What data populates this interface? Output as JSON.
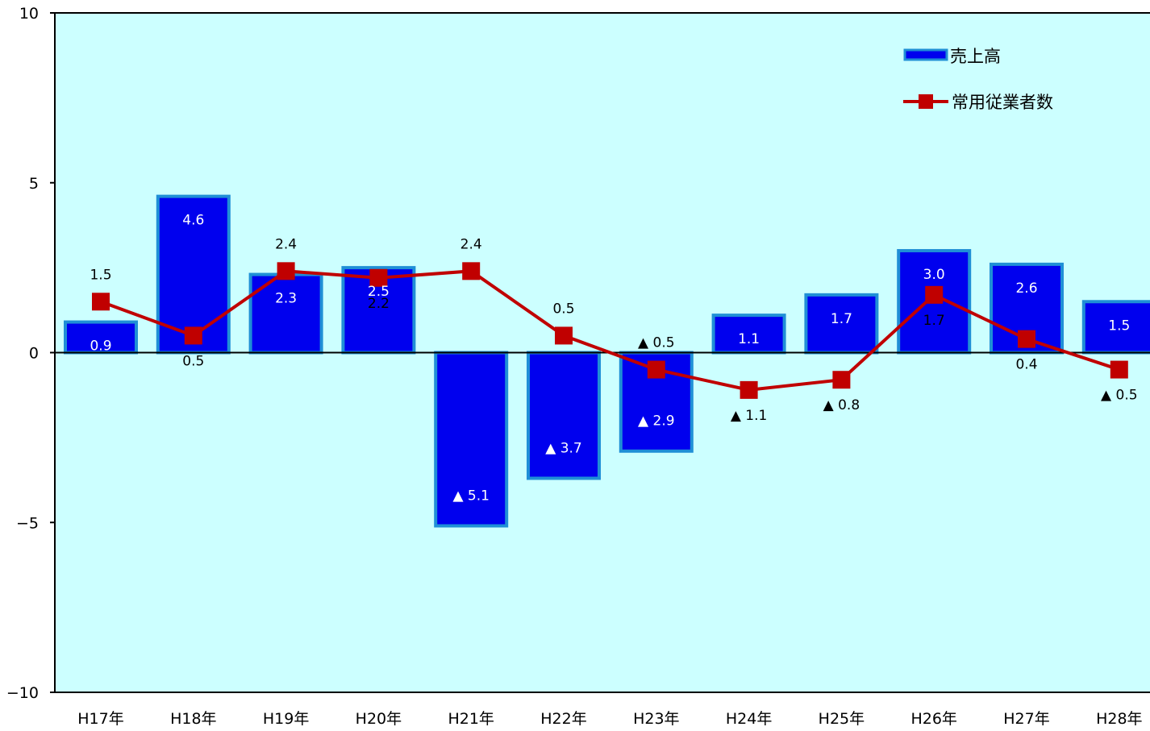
{
  "chart_data": {
    "type": "bar",
    "categories": [
      "H17年",
      "H18年",
      "H19年",
      "H20年",
      "H21年",
      "H22年",
      "H23年",
      "H24年",
      "H25年",
      "H26年",
      "H27年",
      "H28年"
    ],
    "series": [
      {
        "name": "売上高",
        "kind": "bar",
        "values": [
          0.9,
          4.6,
          2.3,
          2.5,
          -5.1,
          -3.7,
          -2.9,
          1.1,
          1.7,
          3.0,
          2.6,
          1.5
        ],
        "labels": [
          "0.9",
          "4.6",
          "2.3",
          "2.5",
          "▲ 5.1",
          "▲ 3.7",
          "▲ 2.9",
          "1.1",
          "1.7",
          "3.0",
          "2.6",
          "1.5"
        ],
        "color": "#0000ee",
        "border_color": "#1f8fd6"
      },
      {
        "name": "常用従業者数",
        "kind": "line",
        "values": [
          1.5,
          0.5,
          2.4,
          2.2,
          2.4,
          0.5,
          -0.5,
          -1.1,
          -0.8,
          1.7,
          0.4,
          -0.5
        ],
        "labels": [
          "1.5",
          "0.5",
          "2.4",
          "2.2",
          "2.4",
          "0.5",
          "▲ 0.5",
          "▲ 1.1",
          "▲ 0.8",
          "1.7",
          "0.4",
          "▲ 0.5"
        ],
        "color": "#c00000"
      }
    ],
    "ylim": [
      -10,
      10
    ],
    "yticks": [
      "10",
      "5",
      "0",
      "−5",
      "−10"
    ],
    "grid": false,
    "plot_background": "#ccffff",
    "legend": "top-right"
  }
}
